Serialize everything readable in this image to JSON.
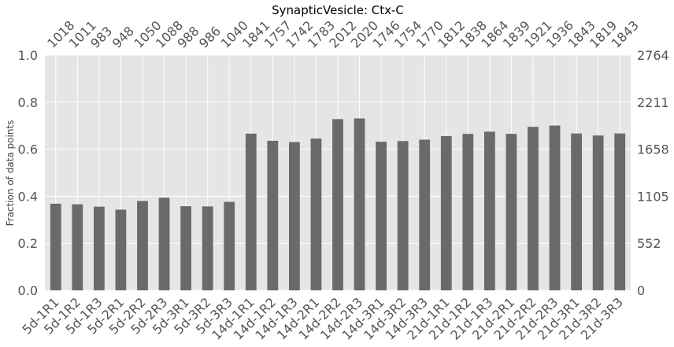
{
  "chart_data": {
    "type": "bar",
    "title": "SynapticVesicle: Ctx-C",
    "ylabel": "Fraction of data points",
    "ylim": [
      0,
      1
    ],
    "y_ticks": [
      "0.0",
      "0.2",
      "0.4",
      "0.6",
      "0.8",
      "1.0"
    ],
    "y2_ticks": [
      "0",
      "552",
      "1105",
      "1658",
      "2211",
      "2764"
    ],
    "y2_max": 2764,
    "categories": [
      "5d-1R1",
      "5d-1R2",
      "5d-1R3",
      "5d-2R1",
      "5d-2R2",
      "5d-2R3",
      "5d-3R1",
      "5d-3R2",
      "5d-3R3",
      "14d-1R1",
      "14d-1R2",
      "14d-1R3",
      "14d-2R1",
      "14d-2R2",
      "14d-2R3",
      "14d-3R1",
      "14d-3R2",
      "14d-3R3",
      "21d-1R1",
      "21d-1R2",
      "21d-1R3",
      "21d-2R1",
      "21d-2R2",
      "21d-2R3",
      "21d-3R1",
      "21d-3R2",
      "21d-3R3"
    ],
    "counts": [
      1018,
      1011,
      983,
      948,
      1050,
      1088,
      988,
      986,
      1040,
      1841,
      1757,
      1742,
      1783,
      2012,
      2020,
      1746,
      1754,
      1770,
      1812,
      1838,
      1864,
      1839,
      1921,
      1936,
      1843,
      1819,
      1843
    ],
    "grid": true,
    "colors": {
      "bar": "#6a6a6a",
      "background": "#e5e5e5",
      "grid": "#ffffff"
    }
  }
}
